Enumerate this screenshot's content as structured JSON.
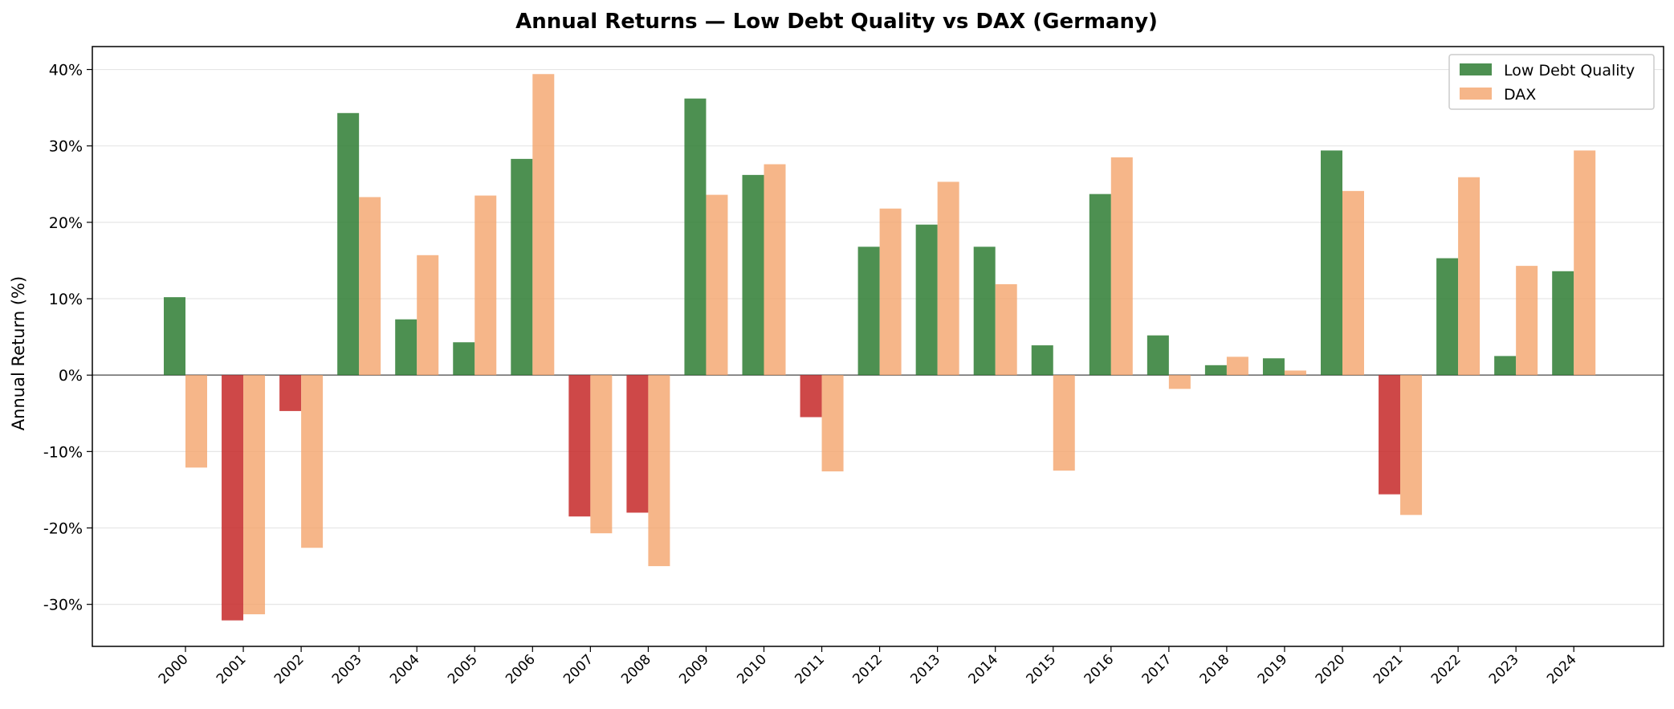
{
  "chart_data": {
    "type": "bar",
    "title": "Annual Returns — Low Debt Quality vs DAX (Germany)",
    "xlabel": "",
    "ylabel": "Annual Return (%)",
    "ylim": [
      -35.5,
      43
    ],
    "yticks": [
      -30,
      -20,
      -10,
      0,
      10,
      20,
      30,
      40
    ],
    "ytick_labels": [
      "-30%",
      "-20%",
      "-10%",
      "0%",
      "10%",
      "20%",
      "30%",
      "40%"
    ],
    "grid": true,
    "legend_position": "top-right",
    "categories": [
      "2000",
      "2001",
      "2002",
      "2003",
      "2004",
      "2005",
      "2006",
      "2007",
      "2008",
      "2009",
      "2010",
      "2011",
      "2012",
      "2013",
      "2014",
      "2015",
      "2016",
      "2017",
      "2018",
      "2019",
      "2020",
      "2021",
      "2022",
      "2023",
      "2024"
    ],
    "series": [
      {
        "name": "Low Debt Quality",
        "color": "#2e7d32",
        "negative_color": "#c62828",
        "values": [
          10.2,
          -32.1,
          -4.7,
          34.3,
          7.3,
          4.3,
          28.3,
          -18.5,
          -18.0,
          36.2,
          26.2,
          -5.5,
          16.8,
          19.7,
          16.8,
          3.9,
          23.7,
          5.2,
          1.3,
          2.2,
          29.4,
          -15.6,
          15.3,
          2.5,
          13.6
        ]
      },
      {
        "name": "DAX",
        "color": "#f4a46c",
        "values": [
          -12.1,
          -31.3,
          -22.6,
          23.3,
          15.7,
          23.5,
          39.4,
          -20.7,
          -25.0,
          23.6,
          27.6,
          -12.6,
          21.8,
          25.3,
          11.9,
          -12.5,
          28.5,
          -1.8,
          2.4,
          0.6,
          24.1,
          -18.3,
          25.9,
          14.3,
          29.4
        ]
      }
    ]
  }
}
